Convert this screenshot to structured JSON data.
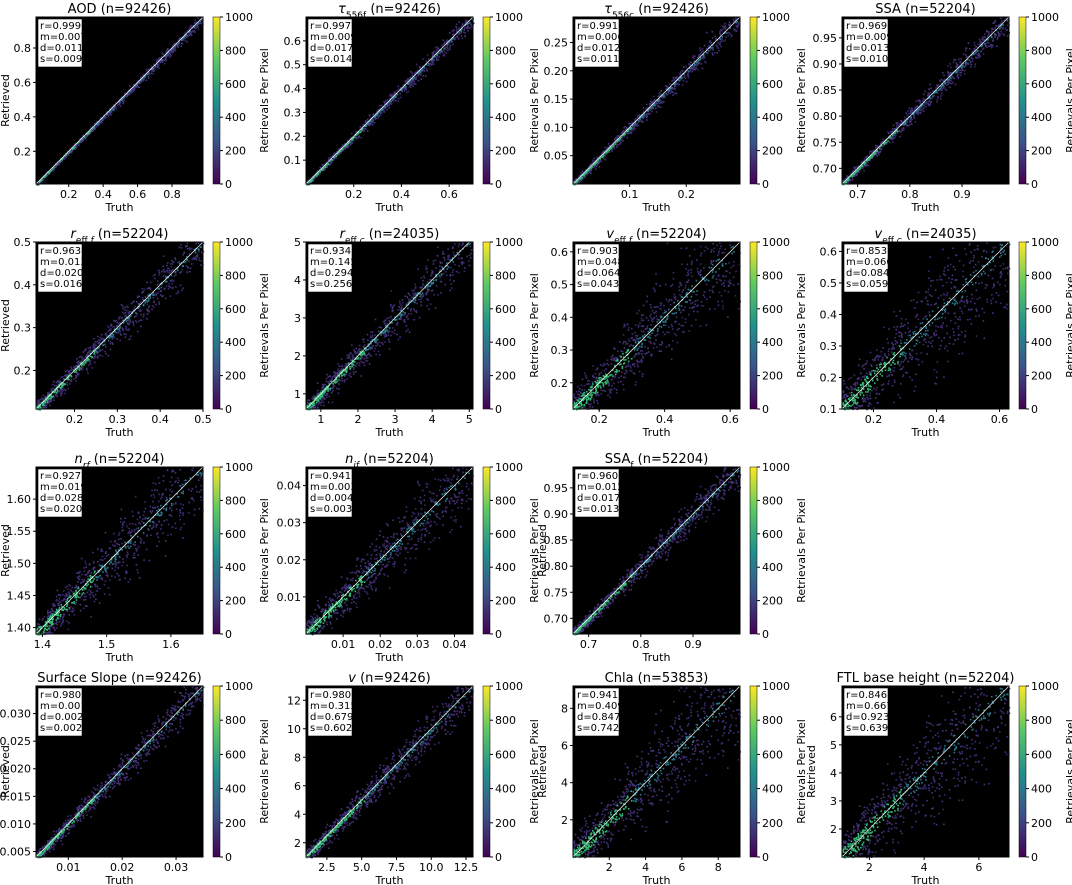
{
  "colorbar": {
    "label": "Retrievals Per Pixel",
    "ticks": [
      0,
      200,
      400,
      600,
      800,
      1000
    ],
    "range": [
      0,
      1000
    ],
    "colormap": "viridis",
    "colors": [
      "#440154",
      "#3b528b",
      "#21918c",
      "#5ec962",
      "#fde725"
    ]
  },
  "chart_data": [
    {
      "type": "heatmap",
      "title": "AOD (n=92426)",
      "title_parts": [
        {
          "t": "AOD (n=92426)"
        }
      ],
      "xlabel": "Truth",
      "ylabel": "Retrieved",
      "xlim": [
        0.01,
        0.98
      ],
      "ylim": [
        0.01,
        0.98
      ],
      "xticks": [
        {
          "v": 0.2,
          "label": "0.2"
        },
        {
          "v": 0.4,
          "label": "0.4"
        },
        {
          "v": 0.6,
          "label": "0.6"
        },
        {
          "v": 0.8,
          "label": "0.8"
        }
      ],
      "yticks": [
        {
          "v": 0.2,
          "label": "0.2"
        },
        {
          "v": 0.4,
          "label": "0.4"
        },
        {
          "v": 0.6,
          "label": "0.6"
        },
        {
          "v": 0.8,
          "label": "0.8"
        }
      ],
      "stats": [
        "r=0.999",
        "m=0.007",
        "d=0.011",
        "s=0.009"
      ],
      "scatter": 0.012
    },
    {
      "type": "heatmap",
      "title": "τ556f (n=92426)",
      "title_parts": [
        {
          "t": "τ",
          "it": true
        },
        {
          "t": "556f",
          "sub": true
        },
        {
          "t": " (n=92426)"
        }
      ],
      "xlabel": "Truth",
      "ylabel": "",
      "xlim": [
        0.0,
        0.7
      ],
      "ylim": [
        0.0,
        0.7
      ],
      "xticks": [
        {
          "v": 0.2,
          "label": "0.2"
        },
        {
          "v": 0.4,
          "label": "0.4"
        },
        {
          "v": 0.6,
          "label": "0.6"
        }
      ],
      "yticks": [
        {
          "v": 0.1,
          "label": "0.1"
        },
        {
          "v": 0.2,
          "label": "0.2"
        },
        {
          "v": 0.3,
          "label": "0.3"
        },
        {
          "v": 0.4,
          "label": "0.4"
        },
        {
          "v": 0.5,
          "label": "0.5"
        },
        {
          "v": 0.6,
          "label": "0.6"
        }
      ],
      "stats": [
        "r=0.997",
        "m=0.009",
        "d=0.017",
        "s=0.014"
      ],
      "scatter": 0.02
    },
    {
      "type": "heatmap",
      "title": "τ556c (n=92426)",
      "title_parts": [
        {
          "t": "τ",
          "it": true
        },
        {
          "t": "556c",
          "sub": true
        },
        {
          "t": " (n=92426)"
        }
      ],
      "xlabel": "Truth",
      "ylabel": "",
      "xlim": [
        0.0,
        0.295
      ],
      "ylim": [
        0.0,
        0.295
      ],
      "xticks": [
        {
          "v": 0.1,
          "label": "0.1"
        },
        {
          "v": 0.2,
          "label": "0.2"
        }
      ],
      "yticks": [
        {
          "v": 0.05,
          "label": "0.05"
        },
        {
          "v": 0.1,
          "label": "0.10"
        },
        {
          "v": 0.15,
          "label": "0.15"
        },
        {
          "v": 0.2,
          "label": "0.20"
        },
        {
          "v": 0.25,
          "label": "0.25"
        }
      ],
      "stats": [
        "r=0.991",
        "m=0.006",
        "d=0.012",
        "s=0.011"
      ],
      "scatter": 0.025
    },
    {
      "type": "heatmap",
      "title": "SSA (n=52204)",
      "title_parts": [
        {
          "t": "SSA (n=52204)"
        }
      ],
      "xlabel": "Truth",
      "ylabel": "",
      "xlim": [
        0.67,
        0.99
      ],
      "ylim": [
        0.67,
        0.99
      ],
      "xticks": [
        {
          "v": 0.7,
          "label": "0.7"
        },
        {
          "v": 0.8,
          "label": "0.8"
        },
        {
          "v": 0.9,
          "label": "0.9"
        }
      ],
      "yticks": [
        {
          "v": 0.7,
          "label": "0.70"
        },
        {
          "v": 0.75,
          "label": "0.75"
        },
        {
          "v": 0.8,
          "label": "0.80"
        },
        {
          "v": 0.85,
          "label": "0.85"
        },
        {
          "v": 0.9,
          "label": "0.90"
        },
        {
          "v": 0.95,
          "label": "0.95"
        }
      ],
      "stats": [
        "r=0.969",
        "m=0.009",
        "d=0.013",
        "s=0.010"
      ],
      "scatter": 0.03
    },
    {
      "type": "heatmap",
      "title": "reff,f (n=52204)",
      "title_parts": [
        {
          "t": "r",
          "it": true
        },
        {
          "t": "eff,",
          "sub": true
        },
        {
          "t": "f",
          "sub": true,
          "it": true
        },
        {
          "t": " (n=52204)"
        }
      ],
      "xlabel": "Truth",
      "ylabel": "Retrieved",
      "xlim": [
        0.11,
        0.5
      ],
      "ylim": [
        0.11,
        0.5
      ],
      "xticks": [
        {
          "v": 0.2,
          "label": "0.2"
        },
        {
          "v": 0.3,
          "label": "0.3"
        },
        {
          "v": 0.4,
          "label": "0.4"
        },
        {
          "v": 0.5,
          "label": "0.5"
        }
      ],
      "yticks": [
        {
          "v": 0.2,
          "label": "0.2"
        },
        {
          "v": 0.3,
          "label": "0.3"
        },
        {
          "v": 0.4,
          "label": "0.4"
        },
        {
          "v": 0.5,
          "label": "0.5"
        }
      ],
      "stats": [
        "r=0.963",
        "m=0.013",
        "d=0.020",
        "s=0.016"
      ],
      "scatter": 0.05
    },
    {
      "type": "heatmap",
      "title": "reff,c (n=24035)",
      "title_parts": [
        {
          "t": "r",
          "it": true
        },
        {
          "t": "eff,",
          "sub": true
        },
        {
          "t": "c",
          "sub": true,
          "it": true
        },
        {
          "t": " (n=24035)"
        }
      ],
      "xlabel": "Truth",
      "ylabel": "",
      "xlim": [
        0.6,
        5.1
      ],
      "ylim": [
        0.6,
        5.0
      ],
      "xticks": [
        {
          "v": 1,
          "label": "1"
        },
        {
          "v": 2,
          "label": "2"
        },
        {
          "v": 3,
          "label": "3"
        },
        {
          "v": 4,
          "label": "4"
        },
        {
          "v": 5,
          "label": "5"
        }
      ],
      "yticks": [
        {
          "v": 1,
          "label": "1"
        },
        {
          "v": 2,
          "label": "2"
        },
        {
          "v": 3,
          "label": "3"
        },
        {
          "v": 4,
          "label": "4"
        },
        {
          "v": 5,
          "label": "5"
        }
      ],
      "stats": [
        "r=0.934",
        "m=0.145",
        "d=0.294",
        "s=0.256"
      ],
      "scatter": 0.06
    },
    {
      "type": "heatmap",
      "title": "veff,f (n=52204)",
      "title_parts": [
        {
          "t": "v",
          "it": true
        },
        {
          "t": "eff,",
          "sub": true
        },
        {
          "t": "f",
          "sub": true,
          "it": true
        },
        {
          "t": " (n=52204)"
        }
      ],
      "xlabel": "Truth",
      "ylabel": "",
      "xlim": [
        0.12,
        0.63
      ],
      "ylim": [
        0.12,
        0.63
      ],
      "xticks": [
        {
          "v": 0.2,
          "label": "0.2"
        },
        {
          "v": 0.4,
          "label": "0.4"
        },
        {
          "v": 0.6,
          "label": "0.6"
        }
      ],
      "yticks": [
        {
          "v": 0.2,
          "label": "0.2"
        },
        {
          "v": 0.3,
          "label": "0.3"
        },
        {
          "v": 0.4,
          "label": "0.4"
        },
        {
          "v": 0.5,
          "label": "0.5"
        },
        {
          "v": 0.6,
          "label": "0.6"
        }
      ],
      "stats": [
        "r=0.903",
        "m=0.048",
        "d=0.064",
        "s=0.043"
      ],
      "scatter": 0.12
    },
    {
      "type": "heatmap",
      "title": "veff,c (n=24035)",
      "title_parts": [
        {
          "t": "v",
          "it": true
        },
        {
          "t": "eff,",
          "sub": true
        },
        {
          "t": "c",
          "sub": true,
          "it": true
        },
        {
          "t": " (n=24035)"
        }
      ],
      "xlabel": "Truth",
      "ylabel": "",
      "xlim": [
        0.1,
        0.63
      ],
      "ylim": [
        0.1,
        0.63
      ],
      "xticks": [
        {
          "v": 0.2,
          "label": "0.2"
        },
        {
          "v": 0.4,
          "label": "0.4"
        },
        {
          "v": 0.6,
          "label": "0.6"
        }
      ],
      "yticks": [
        {
          "v": 0.1,
          "label": "0.1"
        },
        {
          "v": 0.2,
          "label": "0.2"
        },
        {
          "v": 0.3,
          "label": "0.3"
        },
        {
          "v": 0.4,
          "label": "0.4"
        },
        {
          "v": 0.5,
          "label": "0.5"
        },
        {
          "v": 0.6,
          "label": "0.6"
        }
      ],
      "stats": [
        "r=0.853",
        "m=0.060",
        "d=0.084",
        "s=0.059"
      ],
      "scatter": 0.15
    },
    {
      "type": "heatmap",
      "title": "nrf (n=52204)",
      "title_parts": [
        {
          "t": "n",
          "it": true
        },
        {
          "t": "rf",
          "sub": true,
          "it": true
        },
        {
          "t": " (n=52204)"
        }
      ],
      "xlabel": "Truth",
      "ylabel": "Retrieved",
      "xlim": [
        1.39,
        1.65
      ],
      "ylim": [
        1.39,
        1.65
      ],
      "xticks": [
        {
          "v": 1.4,
          "label": "1.4"
        },
        {
          "v": 1.5,
          "label": "1.5"
        },
        {
          "v": 1.6,
          "label": "1.6"
        }
      ],
      "yticks": [
        {
          "v": 1.4,
          "label": "1.40"
        },
        {
          "v": 1.45,
          "label": "1.45"
        },
        {
          "v": 1.5,
          "label": "1.50"
        },
        {
          "v": 1.55,
          "label": "1.55"
        },
        {
          "v": 1.6,
          "label": "1.60"
        }
      ],
      "stats": [
        "r=0.927",
        "m=0.019",
        "d=0.028",
        "s=0.020"
      ],
      "scatter": 0.1
    },
    {
      "type": "heatmap",
      "title": "nif (n=52204)",
      "title_parts": [
        {
          "t": "n",
          "it": true
        },
        {
          "t": "if",
          "sub": true,
          "it": true
        },
        {
          "t": " (n=52204)"
        }
      ],
      "xlabel": "Truth",
      "ylabel": "",
      "xlim": [
        0.0,
        0.045
      ],
      "ylim": [
        0.0,
        0.045
      ],
      "xticks": [
        {
          "v": 0.01,
          "label": "0.01"
        },
        {
          "v": 0.02,
          "label": "0.02"
        },
        {
          "v": 0.03,
          "label": "0.03"
        },
        {
          "v": 0.04,
          "label": "0.04"
        }
      ],
      "yticks": [
        {
          "v": 0.01,
          "label": "0.01"
        },
        {
          "v": 0.02,
          "label": "0.02"
        },
        {
          "v": 0.03,
          "label": "0.03"
        },
        {
          "v": 0.04,
          "label": "0.04"
        }
      ],
      "stats": [
        "r=0.941",
        "m=0.003",
        "d=0.004",
        "s=0.003"
      ],
      "scatter": 0.09
    },
    {
      "type": "heatmap",
      "title": "SSAf (n=52204)",
      "title_parts": [
        {
          "t": "SSA"
        },
        {
          "t": "f",
          "sub": true
        },
        {
          "t": " (n=52204)"
        }
      ],
      "xlabel": "Truth",
      "ylabel": "Retrieved",
      "xlim": [
        0.67,
        0.99
      ],
      "ylim": [
        0.67,
        0.99
      ],
      "xticks": [
        {
          "v": 0.7,
          "label": "0.7"
        },
        {
          "v": 0.8,
          "label": "0.8"
        },
        {
          "v": 0.9,
          "label": "0.9"
        }
      ],
      "yticks": [
        {
          "v": 0.7,
          "label": "0.70"
        },
        {
          "v": 0.75,
          "label": "0.75"
        },
        {
          "v": 0.8,
          "label": "0.80"
        },
        {
          "v": 0.85,
          "label": "0.85"
        },
        {
          "v": 0.9,
          "label": "0.90"
        },
        {
          "v": 0.95,
          "label": "0.95"
        }
      ],
      "stats": [
        "r=0.960",
        "m=0.012",
        "d=0.017",
        "s=0.013"
      ],
      "scatter": 0.04
    },
    null,
    {
      "type": "heatmap",
      "title": "Surface Slope (n=92426)",
      "title_parts": [
        {
          "t": "Surface Slope (n=92426)"
        }
      ],
      "xlabel": "Truth",
      "ylabel": "Retrieved",
      "xlim": [
        0.004,
        0.035
      ],
      "ylim": [
        0.004,
        0.035
      ],
      "xticks": [
        {
          "v": 0.01,
          "label": "0.01"
        },
        {
          "v": 0.02,
          "label": "0.02"
        },
        {
          "v": 0.03,
          "label": "0.03"
        }
      ],
      "yticks": [
        {
          "v": 0.005,
          "label": "0.005"
        },
        {
          "v": 0.01,
          "label": "0.010"
        },
        {
          "v": 0.015,
          "label": "0.015"
        },
        {
          "v": 0.02,
          "label": "0.020"
        },
        {
          "v": 0.025,
          "label": "0.025"
        },
        {
          "v": 0.03,
          "label": "0.030"
        }
      ],
      "stats": [
        "r=0.980",
        "m=0.001",
        "d=0.002",
        "s=0.002"
      ],
      "scatter": 0.04
    },
    {
      "type": "heatmap",
      "title": "v (n=92426)",
      "title_parts": [
        {
          "t": "v",
          "it": true
        },
        {
          "t": " (n=92426)"
        }
      ],
      "xlabel": "Truth",
      "ylabel": "",
      "xlim": [
        1.0,
        13.0
      ],
      "ylim": [
        1.0,
        13.0
      ],
      "xticks": [
        {
          "v": 2.5,
          "label": "2.5"
        },
        {
          "v": 5,
          "label": "5.0"
        },
        {
          "v": 7.5,
          "label": "7.5"
        },
        {
          "v": 10,
          "label": "10.0"
        },
        {
          "v": 12.5,
          "label": "12.5"
        }
      ],
      "yticks": [
        {
          "v": 2,
          "label": "2"
        },
        {
          "v": 4,
          "label": "4"
        },
        {
          "v": 6,
          "label": "6"
        },
        {
          "v": 8,
          "label": "8"
        },
        {
          "v": 10,
          "label": "10"
        },
        {
          "v": 12,
          "label": "12"
        }
      ],
      "stats": [
        "r=0.980",
        "m=0.315",
        "d=0.679",
        "s=0.602"
      ],
      "scatter": 0.05
    },
    {
      "type": "heatmap",
      "title": "Chla (n=53853)",
      "title_parts": [
        {
          "t": "Chla (n=53853)"
        }
      ],
      "xlabel": "Truth",
      "ylabel": "Retrieved",
      "xlim": [
        0.0,
        9.2
      ],
      "ylim": [
        0.0,
        9.2
      ],
      "xticks": [
        {
          "v": 2,
          "label": "2"
        },
        {
          "v": 4,
          "label": "4"
        },
        {
          "v": 6,
          "label": "6"
        },
        {
          "v": 8,
          "label": "8"
        }
      ],
      "yticks": [
        {
          "v": 2,
          "label": "2"
        },
        {
          "v": 4,
          "label": "4"
        },
        {
          "v": 6,
          "label": "6"
        },
        {
          "v": 8,
          "label": "8"
        }
      ],
      "stats": [
        "r=0.941",
        "m=0.409",
        "d=0.847",
        "s=0.742"
      ],
      "scatter": 0.13
    },
    {
      "type": "heatmap",
      "title": "FTL base height (n=52204)",
      "title_parts": [
        {
          "t": "FTL base height (n=52204)"
        }
      ],
      "xlabel": "Truth",
      "ylabel": "Retrieved",
      "xlim": [
        1.0,
        7.1
      ],
      "ylim": [
        1.0,
        7.1
      ],
      "xticks": [
        {
          "v": 2,
          "label": "2"
        },
        {
          "v": 4,
          "label": "4"
        },
        {
          "v": 6,
          "label": "6"
        }
      ],
      "yticks": [
        {
          "v": 2,
          "label": "2"
        },
        {
          "v": 3,
          "label": "3"
        },
        {
          "v": 4,
          "label": "4"
        },
        {
          "v": 5,
          "label": "5"
        },
        {
          "v": 6,
          "label": "6"
        }
      ],
      "stats": [
        "r=0.846",
        "m=0.667",
        "d=0.923",
        "s=0.639"
      ],
      "scatter": 0.15
    }
  ]
}
